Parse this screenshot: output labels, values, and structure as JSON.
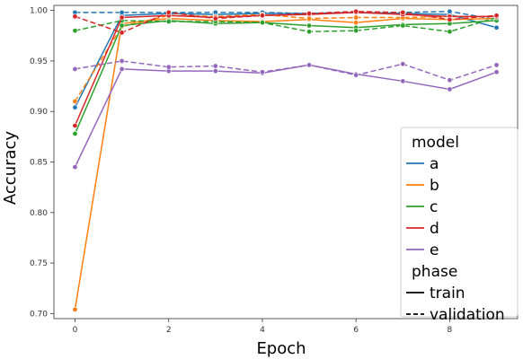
{
  "chart_data": {
    "type": "line",
    "xlabel": "Epoch",
    "ylabel": "Accuracy",
    "xlim": [
      -0.45,
      9.45
    ],
    "ylim": [
      0.695,
      1.005
    ],
    "x_ticks": [
      0,
      2,
      4,
      6,
      8
    ],
    "y_ticks": [
      0.7,
      0.75,
      0.8,
      0.85,
      0.9,
      0.95,
      1.0
    ],
    "x": [
      0,
      1,
      2,
      3,
      4,
      5,
      6,
      7,
      8,
      9
    ],
    "grid": false,
    "legend_placement": "lower-right",
    "legend": {
      "hue_title": "model",
      "style_title": "phase",
      "style_labels": [
        "train",
        "validation"
      ]
    },
    "series": [
      {
        "name": "a",
        "phase": "train",
        "color": "#1f77b4",
        "values": [
          0.904,
          0.995,
          0.997,
          0.996,
          0.997,
          0.997,
          0.998,
          0.997,
          0.996,
          0.983
        ]
      },
      {
        "name": "a",
        "phase": "validation",
        "color": "#1f77b4",
        "values": [
          0.998,
          0.998,
          0.998,
          0.998,
          0.998,
          0.997,
          0.998,
          0.998,
          0.999,
          0.991
        ]
      },
      {
        "name": "b",
        "phase": "train",
        "color": "#ff7f0e",
        "values": [
          0.704,
          0.987,
          0.992,
          0.99,
          0.989,
          0.991,
          0.988,
          0.992,
          0.991,
          0.992
        ]
      },
      {
        "name": "b",
        "phase": "validation",
        "color": "#ff7f0e",
        "values": [
          0.91,
          0.984,
          0.995,
          0.994,
          0.996,
          0.992,
          0.993,
          0.993,
          0.994,
          0.994
        ]
      },
      {
        "name": "c",
        "phase": "train",
        "color": "#2ca02c",
        "values": [
          0.878,
          0.985,
          0.99,
          0.987,
          0.988,
          0.985,
          0.983,
          0.986,
          0.987,
          0.99
        ]
      },
      {
        "name": "c",
        "phase": "validation",
        "color": "#2ca02c",
        "values": [
          0.98,
          0.99,
          0.989,
          0.989,
          0.988,
          0.979,
          0.98,
          0.985,
          0.979,
          0.993
        ]
      },
      {
        "name": "d",
        "phase": "train",
        "color": "#d62728",
        "values": [
          0.886,
          0.993,
          0.995,
          0.993,
          0.995,
          0.996,
          0.998,
          0.996,
          0.994,
          0.994
        ]
      },
      {
        "name": "d",
        "phase": "validation",
        "color": "#d62728",
        "values": [
          0.994,
          0.978,
          0.998,
          0.992,
          0.995,
          0.997,
          0.999,
          0.998,
          0.991,
          0.995
        ]
      },
      {
        "name": "e",
        "phase": "train",
        "color": "#9467bd",
        "values": [
          0.845,
          0.942,
          0.94,
          0.94,
          0.938,
          0.946,
          0.937,
          0.93,
          0.922,
          0.939
        ]
      },
      {
        "name": "e",
        "phase": "validation",
        "color": "#9467bd",
        "values": [
          0.942,
          0.95,
          0.944,
          0.945,
          0.939,
          0.946,
          0.936,
          0.947,
          0.931,
          0.946
        ]
      }
    ]
  }
}
